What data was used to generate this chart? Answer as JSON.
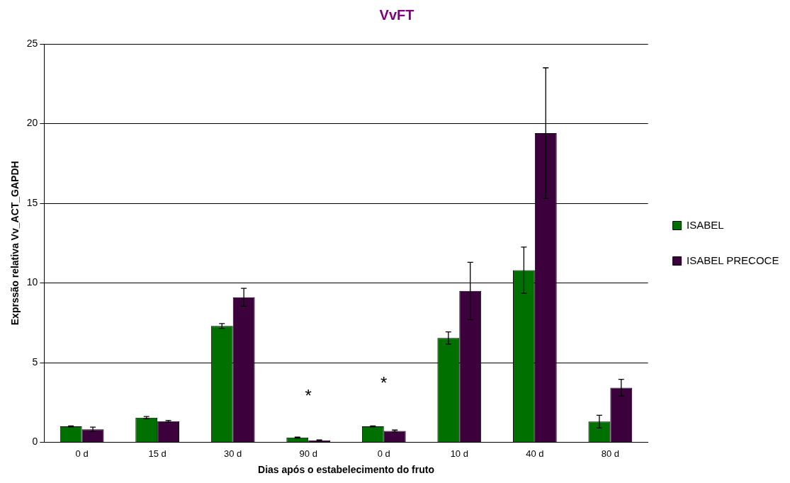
{
  "chart_data": {
    "type": "bar",
    "title": "VvFT",
    "xlabel": "Dias após o estabelecimento do fruto",
    "ylabel": "Exprssão relativa Vv_ACT_GAPDH",
    "categories": [
      "0 d",
      "15 d",
      "30 d",
      "90 d",
      "0 d",
      "10 d",
      "40 d",
      "80 d"
    ],
    "series": [
      {
        "name": "ISABEL",
        "color": "#007000",
        "values": [
          1.0,
          1.55,
          7.3,
          0.3,
          1.0,
          6.55,
          10.8,
          1.3
        ],
        "errors": [
          0.03,
          0.07,
          0.15,
          0.03,
          0.03,
          0.38,
          1.45,
          0.4
        ]
      },
      {
        "name": "ISABEL PRECOCE",
        "color": "#3c003c",
        "values": [
          0.82,
          1.33,
          9.1,
          0.13,
          0.71,
          9.5,
          19.4,
          3.43
        ],
        "errors": [
          0.13,
          0.05,
          0.56,
          0.02,
          0.06,
          1.8,
          4.1,
          0.52
        ]
      }
    ],
    "ylim": [
      0,
      25
    ],
    "yticks": [
      0,
      5,
      10,
      15,
      20,
      25
    ],
    "grid": "y",
    "legend": "right",
    "annotations": [
      "*",
      "*"
    ]
  }
}
